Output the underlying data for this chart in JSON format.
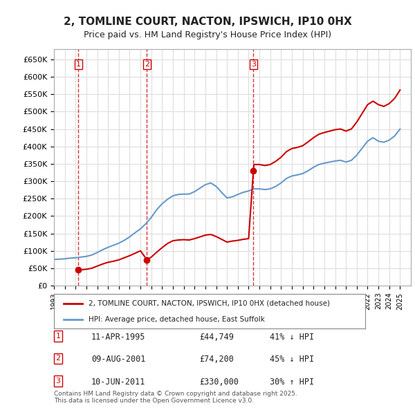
{
  "title": "2, TOMLINE COURT, NACTON, IPSWICH, IP10 0HX",
  "subtitle": "Price paid vs. HM Land Registry's House Price Index (HPI)",
  "legend_house": "2, TOMLINE COURT, NACTON, IPSWICH, IP10 0HX (detached house)",
  "legend_hpi": "HPI: Average price, detached house, East Suffolk",
  "house_color": "#cc0000",
  "hpi_color": "#6699cc",
  "transactions": [
    {
      "num": 1,
      "date": "11-APR-1995",
      "price": 44749,
      "pct": "41%",
      "dir": "↓",
      "x": 1995.27
    },
    {
      "num": 2,
      "date": "09-AUG-2001",
      "price": 74200,
      "pct": "45%",
      "dir": "↓",
      "x": 2001.6
    },
    {
      "num": 3,
      "date": "10-JUN-2011",
      "price": 330000,
      "pct": "30%",
      "dir": "↑",
      "x": 2011.44
    }
  ],
  "footer": "Contains HM Land Registry data © Crown copyright and database right 2025.\nThis data is licensed under the Open Government Licence v3.0.",
  "ylim": [
    0,
    680000
  ],
  "xlim": [
    1993,
    2026
  ],
  "yticks": [
    0,
    50000,
    100000,
    150000,
    200000,
    250000,
    300000,
    350000,
    400000,
    450000,
    500000,
    550000,
    600000,
    650000
  ],
  "background_color": "#ffffff",
  "grid_color": "#dddddd",
  "hpi_data_x": [
    1993,
    1993.5,
    1994,
    1994.5,
    1995,
    1995.5,
    1996,
    1996.5,
    1997,
    1997.5,
    1998,
    1998.5,
    1999,
    1999.5,
    2000,
    2000.5,
    2001,
    2001.5,
    2002,
    2002.5,
    2003,
    2003.5,
    2004,
    2004.5,
    2005,
    2005.5,
    2006,
    2006.5,
    2007,
    2007.5,
    2008,
    2008.5,
    2009,
    2009.5,
    2010,
    2010.5,
    2011,
    2011.5,
    2012,
    2012.5,
    2013,
    2013.5,
    2014,
    2014.5,
    2015,
    2015.5,
    2016,
    2016.5,
    2017,
    2017.5,
    2018,
    2018.5,
    2019,
    2019.5,
    2020,
    2020.5,
    2021,
    2021.5,
    2022,
    2022.5,
    2023,
    2023.5,
    2024,
    2024.5,
    2025
  ],
  "hpi_data_y": [
    75000,
    76000,
    77000,
    79000,
    80000,
    82000,
    84000,
    88000,
    95000,
    103000,
    110000,
    116000,
    122000,
    130000,
    140000,
    152000,
    163000,
    178000,
    196000,
    218000,
    235000,
    248000,
    258000,
    262000,
    263000,
    263000,
    270000,
    280000,
    290000,
    295000,
    285000,
    268000,
    252000,
    255000,
    262000,
    268000,
    272000,
    278000,
    278000,
    276000,
    278000,
    285000,
    295000,
    308000,
    315000,
    318000,
    322000,
    330000,
    340000,
    348000,
    352000,
    355000,
    358000,
    360000,
    355000,
    360000,
    375000,
    395000,
    415000,
    425000,
    415000,
    412000,
    418000,
    430000,
    450000
  ],
  "house_data_x": [
    1995.27,
    1995.27,
    1995.5,
    1996,
    1996.5,
    1997,
    1997.5,
    1998,
    1998.5,
    1999,
    1999.5,
    2000,
    2000.5,
    2001,
    2001.6,
    2001.6,
    2002,
    2002.5,
    2003,
    2003.5,
    2004,
    2004.5,
    2005,
    2005.5,
    2006,
    2006.5,
    2007,
    2007.5,
    2008,
    2008.5,
    2009,
    2009.5,
    2010,
    2010.5,
    2011,
    2011.44,
    2011.44,
    2011.5,
    2012,
    2012.5,
    2013,
    2013.5,
    2014,
    2014.5,
    2015,
    2015.5,
    2016,
    2016.5,
    2017,
    2017.5,
    2018,
    2018.5,
    2019,
    2019.5,
    2020,
    2020.5,
    2021,
    2021.5,
    2022,
    2022.5,
    2023,
    2023.5,
    2024,
    2024.5,
    2025
  ],
  "house_data_y": [
    44749,
    44749,
    45500,
    47000,
    50000,
    56000,
    62000,
    67000,
    70000,
    74000,
    80000,
    86000,
    93000,
    100000,
    74200,
    74200,
    82000,
    96000,
    109000,
    121000,
    129000,
    131000,
    132000,
    131000,
    135000,
    140000,
    145000,
    147000,
    141000,
    133000,
    125000,
    128000,
    130000,
    133000,
    135000,
    330000,
    330000,
    348000,
    348000,
    345000,
    348000,
    357000,
    369000,
    385000,
    394000,
    397000,
    402000,
    413000,
    425000,
    435000,
    440000,
    444000,
    448000,
    450000,
    444000,
    450000,
    470000,
    495000,
    520000,
    530000,
    520000,
    515000,
    523000,
    538000,
    562000
  ]
}
